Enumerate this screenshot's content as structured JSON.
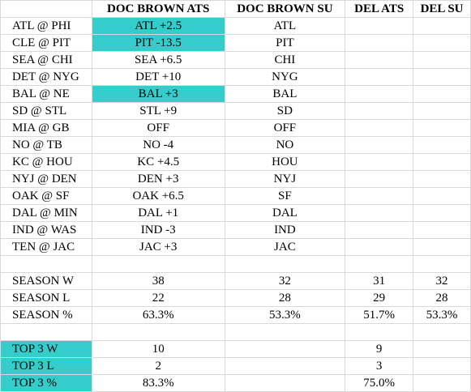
{
  "headers": [
    "",
    "DOC BROWN ATS",
    "DOC BROWN SU",
    "DEL ATS",
    "DEL SU"
  ],
  "games": [
    {
      "matchup": "ATL @ PHI",
      "ats": "ATL +2.5",
      "su": "ATL",
      "ats_highlight": true
    },
    {
      "matchup": "CLE @ PIT",
      "ats": "PIT -13.5",
      "su": "PIT",
      "ats_highlight": true
    },
    {
      "matchup": "SEA @ CHI",
      "ats": "SEA +6.5",
      "su": "CHI",
      "ats_highlight": false
    },
    {
      "matchup": "DET @ NYG",
      "ats": "DET +10",
      "su": "NYG",
      "ats_highlight": false
    },
    {
      "matchup": "BAL @ NE",
      "ats": "BAL +3",
      "su": "BAL",
      "ats_highlight": true
    },
    {
      "matchup": "SD @ STL",
      "ats": "STL +9",
      "su": "SD",
      "ats_highlight": false
    },
    {
      "matchup": "MIA @ GB",
      "ats": "OFF",
      "su": "OFF",
      "ats_highlight": false
    },
    {
      "matchup": "NO @ TB",
      "ats": "NO -4",
      "su": "NO",
      "ats_highlight": false
    },
    {
      "matchup": "KC @ HOU",
      "ats": "KC +4.5",
      "su": "HOU",
      "ats_highlight": false
    },
    {
      "matchup": "NYJ @ DEN",
      "ats": "DEN +3",
      "su": "NYJ",
      "ats_highlight": false
    },
    {
      "matchup": "OAK @ SF",
      "ats": "OAK +6.5",
      "su": "SF",
      "ats_highlight": false
    },
    {
      "matchup": "DAL @ MIN",
      "ats": "DAL +1",
      "su": "DAL",
      "ats_highlight": false
    },
    {
      "matchup": "IND @ WAS",
      "ats": "IND -3",
      "su": "IND",
      "ats_highlight": false
    },
    {
      "matchup": "TEN @ JAC",
      "ats": "JAC +3",
      "su": "JAC",
      "ats_highlight": false
    }
  ],
  "season": [
    {
      "label": "SEASON W",
      "doc_ats": "38",
      "doc_su": "32",
      "del_ats": "31",
      "del_su": "32"
    },
    {
      "label": "SEASON L",
      "doc_ats": "22",
      "doc_su": "28",
      "del_ats": "29",
      "del_su": "28"
    },
    {
      "label": "SEASON %",
      "doc_ats": "63.3%",
      "doc_su": "53.3%",
      "del_ats": "51.7%",
      "del_su": "53.3%"
    }
  ],
  "top3": [
    {
      "label": "TOP 3 W",
      "doc_ats": "10",
      "del_ats": "9"
    },
    {
      "label": "TOP 3 L",
      "doc_ats": "2",
      "del_ats": "3"
    },
    {
      "label": "TOP 3 %",
      "doc_ats": "83.3%",
      "del_ats": "75.0%"
    }
  ],
  "colors": {
    "highlight": "#34cdcc",
    "grid": "#d9d9d9"
  }
}
